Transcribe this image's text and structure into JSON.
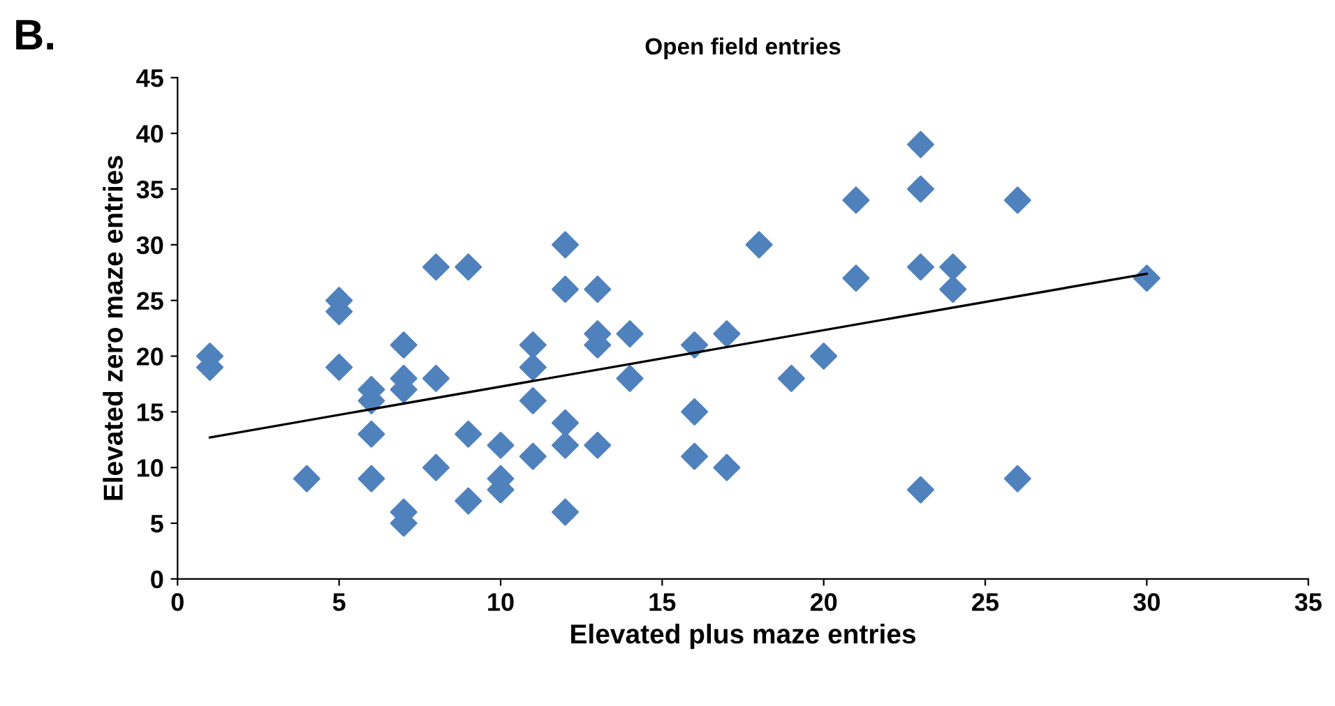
{
  "chart_data": {
    "type": "scatter",
    "title": "Open field entries",
    "xlabel": "Elevated plus maze entries",
    "ylabel": "Elevated zero maze entries",
    "annotations": [
      "B."
    ],
    "marker": "diamond",
    "grid": false,
    "legend": false,
    "xlim": [
      0,
      35
    ],
    "xticks": [
      0,
      5,
      10,
      15,
      20,
      25,
      30,
      35
    ],
    "ylim": [
      0,
      45
    ],
    "yticks": [
      0,
      5,
      10,
      15,
      20,
      25,
      30,
      35,
      40,
      45
    ],
    "series": [
      {
        "color": "#4f81bd",
        "x": [
          1,
          1,
          4,
          5,
          5,
          5,
          6,
          6,
          6,
          6,
          7,
          7,
          7,
          7,
          7,
          8,
          8,
          8,
          9,
          9,
          9,
          10,
          10,
          10,
          11,
          11,
          11,
          11,
          12,
          12,
          12,
          12,
          12,
          13,
          13,
          13,
          13,
          14,
          14,
          16,
          16,
          16,
          17,
          17,
          18,
          19,
          20,
          21,
          21,
          23,
          23,
          23,
          23,
          24,
          24,
          26,
          26,
          30
        ],
        "values": [
          20,
          19,
          9,
          25,
          24,
          19,
          17,
          16,
          13,
          9,
          21,
          18,
          17,
          6,
          5,
          28,
          18,
          10,
          28,
          13,
          7,
          12,
          9,
          8,
          21,
          19,
          16,
          11,
          30,
          26,
          14,
          12,
          6,
          26,
          22,
          21,
          12,
          22,
          18,
          21,
          15,
          11,
          22,
          10,
          30,
          18,
          20,
          34,
          27,
          39,
          35,
          28,
          8,
          28,
          26,
          34,
          9,
          27
        ]
      },
      {
        "type": "line",
        "color": "#000000",
        "marker": "none",
        "x": [
          1,
          30
        ],
        "values": [
          12.7,
          27.4
        ]
      }
    ]
  }
}
